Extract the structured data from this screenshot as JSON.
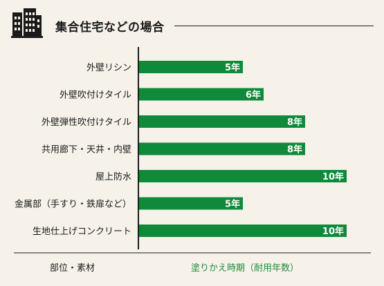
{
  "header": {
    "title": "集合住宅などの場合",
    "icon": "building-icon"
  },
  "footer": {
    "x_label": "部位・素材",
    "y_label": "塗りかえ時期（耐用年数）"
  },
  "colors": {
    "bar": "#0f8a3a",
    "background": "#f6f2ea",
    "text": "#1a1a1a",
    "accent": "#1f8a3c"
  },
  "chart_data": {
    "type": "bar",
    "orientation": "horizontal",
    "categories": [
      "外壁リシン",
      "外壁吹付けタイル",
      "外壁弾性吹付けタイル",
      "共用廊下・天井・内壁",
      "屋上防水",
      "金属部（手すり・鉄扉など）",
      "生地仕上げコンクリート"
    ],
    "values": [
      5,
      6,
      8,
      8,
      10,
      5,
      10
    ],
    "data_labels": [
      "5年",
      "6年",
      "8年",
      "8年",
      "10年",
      "5年",
      "10年"
    ],
    "unit": "年",
    "xlim": [
      0,
      10
    ],
    "grid": false
  }
}
